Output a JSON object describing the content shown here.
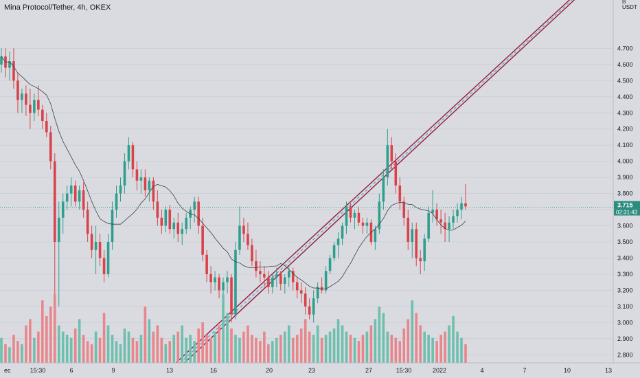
{
  "title": "Mina Protocol/Tether, 4h, OKEX",
  "axis": {
    "currency": "USDT",
    "currency_prefix": "B"
  },
  "price_label": {
    "value": "3.715",
    "timer": "02:31:43"
  },
  "colors": {
    "background": "#d9dbe0",
    "up": "#2e9f8e",
    "down": "#d9424a",
    "volume_up": "#6dbfae",
    "volume_down": "#e9868b",
    "channel": "#9e1b32",
    "channel_fill": "#c9d8e2",
    "channel_mid": "#5b8bd6",
    "ma": "#3a3f4a",
    "price_line": "#2e9f8e",
    "price_label_bg": "#2b8c7d",
    "timer_bg": "#2b8c7d",
    "grid": "#cdd0d6"
  },
  "chart_data": {
    "type": "candlestick",
    "title": "Mina Protocol/Tether, 4h, OKEX",
    "ylim": [
      2.75,
      5.0
    ],
    "y_ticks": [
      "4.700",
      "4.600",
      "4.500",
      "4.400",
      "4.300",
      "4.200",
      "4.100",
      "4.000",
      "3.900",
      "3.800",
      "3.700",
      "3.600",
      "3.500",
      "3.400",
      "3.300",
      "3.200",
      "3.100",
      "3.000",
      "2.900",
      "2.800"
    ],
    "x_ticks": [
      "ec",
      "15:30",
      "6",
      "9",
      "13",
      "16",
      "20",
      "23",
      "27",
      "15:30",
      "2022",
      "4",
      "7",
      "10",
      "13"
    ],
    "last_price": 3.715,
    "candles": [
      [
        4.6,
        4.7,
        4.55,
        4.65
      ],
      [
        4.65,
        4.7,
        4.52,
        4.58
      ],
      [
        4.58,
        4.68,
        4.5,
        4.62
      ],
      [
        4.62,
        4.7,
        4.45,
        4.5
      ],
      [
        4.5,
        4.55,
        4.3,
        4.38
      ],
      [
        4.38,
        4.45,
        4.3,
        4.42
      ],
      [
        4.42,
        4.47,
        4.28,
        4.35
      ],
      [
        4.35,
        4.45,
        4.2,
        4.3
      ],
      [
        4.3,
        4.42,
        4.25,
        4.38
      ],
      [
        4.38,
        4.47,
        4.28,
        4.32
      ],
      [
        4.32,
        4.35,
        4.2,
        4.25
      ],
      [
        4.25,
        4.3,
        4.15,
        4.18
      ],
      [
        4.18,
        4.22,
        3.95,
        4.0
      ],
      [
        4.0,
        4.05,
        3.1,
        3.5
      ],
      [
        3.5,
        3.75,
        3.1,
        3.65
      ],
      [
        3.65,
        3.8,
        3.55,
        3.75
      ],
      [
        3.75,
        3.85,
        3.7,
        3.8
      ],
      [
        3.8,
        3.9,
        3.72,
        3.85
      ],
      [
        3.85,
        3.88,
        3.72,
        3.75
      ],
      [
        3.75,
        3.85,
        3.7,
        3.82
      ],
      [
        3.82,
        3.87,
        3.65,
        3.7
      ],
      [
        3.7,
        3.75,
        3.5,
        3.55
      ],
      [
        3.55,
        3.6,
        3.4,
        3.45
      ],
      [
        3.45,
        3.6,
        3.3,
        3.5
      ],
      [
        3.5,
        3.55,
        3.35,
        3.4
      ],
      [
        3.4,
        3.45,
        3.25,
        3.3
      ],
      [
        3.3,
        3.55,
        3.28,
        3.5
      ],
      [
        3.5,
        3.75,
        3.45,
        3.7
      ],
      [
        3.7,
        3.85,
        3.65,
        3.8
      ],
      [
        3.8,
        3.9,
        3.75,
        3.85
      ],
      [
        3.85,
        4.05,
        3.8,
        4.0
      ],
      [
        4.0,
        4.15,
        3.95,
        4.1
      ],
      [
        4.1,
        4.12,
        3.9,
        3.95
      ],
      [
        3.95,
        4.0,
        3.82,
        3.88
      ],
      [
        3.88,
        3.95,
        3.8,
        3.9
      ],
      [
        3.9,
        3.95,
        3.78,
        3.82
      ],
      [
        3.82,
        3.9,
        3.75,
        3.88
      ],
      [
        3.88,
        3.9,
        3.7,
        3.75
      ],
      [
        3.75,
        3.82,
        3.6,
        3.65
      ],
      [
        3.65,
        3.7,
        3.55,
        3.6
      ],
      [
        3.6,
        3.72,
        3.56,
        3.7
      ],
      [
        3.7,
        3.73,
        3.55,
        3.58
      ],
      [
        3.58,
        3.65,
        3.52,
        3.62
      ],
      [
        3.62,
        3.68,
        3.5,
        3.55
      ],
      [
        3.55,
        3.62,
        3.48,
        3.58
      ],
      [
        3.58,
        3.68,
        3.55,
        3.65
      ],
      [
        3.65,
        3.72,
        3.58,
        3.7
      ],
      [
        3.7,
        3.78,
        3.62,
        3.75
      ],
      [
        3.75,
        3.78,
        3.55,
        3.6
      ],
      [
        3.6,
        3.65,
        3.38,
        3.42
      ],
      [
        3.42,
        3.45,
        3.25,
        3.3
      ],
      [
        3.3,
        3.35,
        3.18,
        3.25
      ],
      [
        3.25,
        3.32,
        3.2,
        3.28
      ],
      [
        3.28,
        3.3,
        3.15,
        3.2
      ],
      [
        3.2,
        3.28,
        3.12,
        3.25
      ],
      [
        3.25,
        3.32,
        3.18,
        3.28
      ],
      [
        3.28,
        3.3,
        3.0,
        3.05
      ],
      [
        3.05,
        3.5,
        3.02,
        3.45
      ],
      [
        3.45,
        3.72,
        3.42,
        3.6
      ],
      [
        3.6,
        3.65,
        3.5,
        3.55
      ],
      [
        3.55,
        3.62,
        3.45,
        3.48
      ],
      [
        3.48,
        3.52,
        3.35,
        3.38
      ],
      [
        3.38,
        3.45,
        3.28,
        3.32
      ],
      [
        3.32,
        3.38,
        3.25,
        3.3
      ],
      [
        3.3,
        3.35,
        3.22,
        3.28
      ],
      [
        3.28,
        3.32,
        3.18,
        3.22
      ],
      [
        3.22,
        3.3,
        3.18,
        3.28
      ],
      [
        3.28,
        3.34,
        3.22,
        3.3
      ],
      [
        3.3,
        3.32,
        3.2,
        3.24
      ],
      [
        3.24,
        3.3,
        3.18,
        3.28
      ],
      [
        3.28,
        3.35,
        3.22,
        3.32
      ],
      [
        3.32,
        3.34,
        3.2,
        3.25
      ],
      [
        3.25,
        3.28,
        3.15,
        3.2
      ],
      [
        3.2,
        3.25,
        3.12,
        3.18
      ],
      [
        3.18,
        3.22,
        3.05,
        3.1
      ],
      [
        3.1,
        3.15,
        3.02,
        3.05
      ],
      [
        3.05,
        3.2,
        3.0,
        3.15
      ],
      [
        3.15,
        3.25,
        3.12,
        3.22
      ],
      [
        3.22,
        3.28,
        3.18,
        3.2
      ],
      [
        3.2,
        3.35,
        3.18,
        3.32
      ],
      [
        3.32,
        3.42,
        3.3,
        3.4
      ],
      [
        3.4,
        3.5,
        3.38,
        3.48
      ],
      [
        3.48,
        3.56,
        3.4,
        3.52
      ],
      [
        3.52,
        3.62,
        3.48,
        3.6
      ],
      [
        3.6,
        3.75,
        3.55,
        3.72
      ],
      [
        3.72,
        3.74,
        3.62,
        3.65
      ],
      [
        3.65,
        3.7,
        3.58,
        3.68
      ],
      [
        3.68,
        3.72,
        3.6,
        3.62
      ],
      [
        3.62,
        3.65,
        3.55,
        3.6
      ],
      [
        3.6,
        3.65,
        3.55,
        3.62
      ],
      [
        3.62,
        3.64,
        3.48,
        3.5
      ],
      [
        3.5,
        3.6,
        3.45,
        3.58
      ],
      [
        3.58,
        3.8,
        3.55,
        3.75
      ],
      [
        3.75,
        3.95,
        3.7,
        3.9
      ],
      [
        3.9,
        4.2,
        3.85,
        4.1
      ],
      [
        4.1,
        4.15,
        3.95,
        4.0
      ],
      [
        4.0,
        4.05,
        3.8,
        3.85
      ],
      [
        3.85,
        3.9,
        3.7,
        3.75
      ],
      [
        3.75,
        3.78,
        3.6,
        3.65
      ],
      [
        3.65,
        3.7,
        3.45,
        3.5
      ],
      [
        3.5,
        3.62,
        3.4,
        3.58
      ],
      [
        3.58,
        3.62,
        3.35,
        3.4
      ],
      [
        3.4,
        3.45,
        3.3,
        3.38
      ],
      [
        3.38,
        3.55,
        3.32,
        3.52
      ],
      [
        3.52,
        3.72,
        3.5,
        3.68
      ],
      [
        3.68,
        3.82,
        3.62,
        3.7
      ],
      [
        3.7,
        3.74,
        3.6,
        3.64
      ],
      [
        3.64,
        3.7,
        3.55,
        3.62
      ],
      [
        3.62,
        3.68,
        3.5,
        3.58
      ],
      [
        3.58,
        3.66,
        3.5,
        3.62
      ],
      [
        3.62,
        3.7,
        3.58,
        3.66
      ],
      [
        3.66,
        3.74,
        3.62,
        3.7
      ],
      [
        3.7,
        3.78,
        3.64,
        3.74
      ],
      [
        3.74,
        3.86,
        3.7,
        3.72
      ]
    ],
    "volume": [
      8,
      6,
      5,
      9,
      7,
      6,
      12,
      14,
      8,
      10,
      20,
      15,
      18,
      22,
      12,
      10,
      9,
      8,
      11,
      14,
      9,
      7,
      6,
      10,
      8,
      16,
      12,
      9,
      7,
      6,
      11,
      10,
      8,
      7,
      9,
      18,
      14,
      10,
      12,
      8,
      6,
      7,
      9,
      10,
      12,
      8,
      9,
      7,
      11,
      13,
      9,
      8,
      10,
      12,
      22,
      16,
      11,
      9,
      8,
      10,
      12,
      9,
      8,
      7,
      10,
      6,
      7,
      8,
      9,
      10,
      12,
      8,
      9,
      11,
      14,
      10,
      9,
      12,
      8,
      9,
      10,
      11,
      14,
      12,
      10,
      9,
      8,
      7,
      9,
      10,
      12,
      14,
      18,
      16,
      10,
      9,
      8,
      7,
      11,
      14,
      20,
      16,
      12,
      10,
      9,
      8,
      7,
      9,
      10,
      12,
      15,
      10,
      8,
      6
    ],
    "channel": {
      "lower": [
        [
          13.2,
          2.75
        ],
        [
          37.8,
          4.73
        ]
      ],
      "upper": [
        [
          17.5,
          3.05
        ],
        [
          41.5,
          5.0
        ]
      ]
    }
  }
}
